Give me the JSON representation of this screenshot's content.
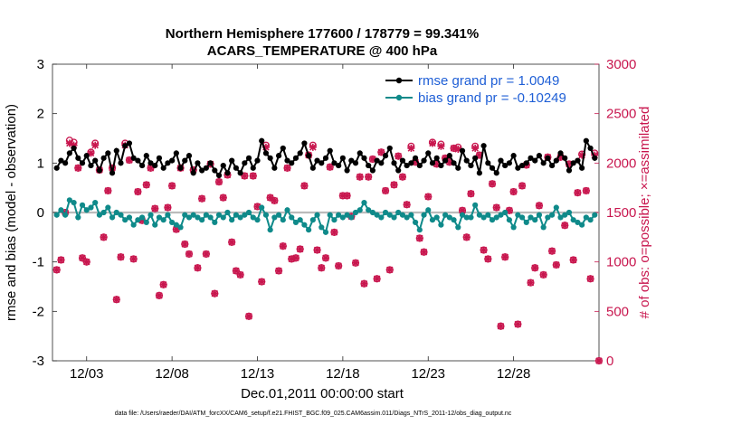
{
  "chart_data": {
    "type": "line",
    "title": "Northern Hemisphere 177600 / 178779 = 99.341%",
    "subtitle": "ACARS_TEMPERATURE @ 400 hPa",
    "xlabel": "Dec.01,2011 00:00:00 start",
    "ylabel_left": "rmse and bias (model - observation)",
    "ylabel_right": "# of obs: o=possible; ×=assimilated",
    "xlim": [
      0.0,
      32.0
    ],
    "ylim_left": [
      -3,
      3
    ],
    "ylim_right": [
      0,
      3000
    ],
    "x_ticks": [
      2,
      7,
      12,
      17,
      22,
      27
    ],
    "x_tick_labels": [
      "12/03",
      "12/08",
      "12/13",
      "12/18",
      "12/23",
      "12/28"
    ],
    "y_ticks_left": [
      -3,
      -2,
      -1,
      0,
      1,
      2,
      3
    ],
    "y_ticks_right": [
      0,
      500,
      1000,
      1500,
      2000,
      2500,
      3000
    ],
    "grid": false,
    "legend_position": "top-right",
    "colors": {
      "rmse": "#000000",
      "bias": "#0f8a8a",
      "obs": "#c8164e",
      "legend_text": "#1f5fd6",
      "zero_line": "#bbbbbb"
    },
    "series": [
      {
        "name": "rmse grand pr = 1.0049",
        "axis": "left",
        "x": [
          0.25,
          0.5,
          0.75,
          1.0,
          1.25,
          1.5,
          1.75,
          2.0,
          2.25,
          2.5,
          2.75,
          3.0,
          3.25,
          3.5,
          3.75,
          4.0,
          4.25,
          4.5,
          4.75,
          5.0,
          5.25,
          5.5,
          5.75,
          6.0,
          6.25,
          6.5,
          6.75,
          7.0,
          7.25,
          7.5,
          7.75,
          8.0,
          8.25,
          8.5,
          8.75,
          9.0,
          9.25,
          9.5,
          9.75,
          10.0,
          10.25,
          10.5,
          10.75,
          11.0,
          11.25,
          11.5,
          11.75,
          12.0,
          12.25,
          12.5,
          12.75,
          13.0,
          13.25,
          13.5,
          13.75,
          14.0,
          14.25,
          14.5,
          14.75,
          15.0,
          15.25,
          15.5,
          15.75,
          16.0,
          16.25,
          16.5,
          16.75,
          17.0,
          17.25,
          17.5,
          17.75,
          18.0,
          18.25,
          18.5,
          18.75,
          19.0,
          19.25,
          19.5,
          19.75,
          20.0,
          20.25,
          20.5,
          20.75,
          21.0,
          21.25,
          21.5,
          21.75,
          22.0,
          22.25,
          22.5,
          22.75,
          23.0,
          23.25,
          23.5,
          23.75,
          24.0,
          24.25,
          24.5,
          24.75,
          25.0,
          25.25,
          25.5,
          25.75,
          26.0,
          26.25,
          26.5,
          26.75,
          27.0,
          27.25,
          27.5,
          27.75,
          28.0,
          28.25,
          28.5,
          28.75,
          29.0,
          29.25,
          29.5,
          29.75,
          30.0,
          30.25,
          30.5,
          30.75,
          31.0,
          31.25,
          31.5,
          31.75
        ],
        "values": [
          0.9,
          1.05,
          1.0,
          1.2,
          1.3,
          1.1,
          1.0,
          1.15,
          0.95,
          1.05,
          0.85,
          1.1,
          1.2,
          0.8,
          1.25,
          1.0,
          1.35,
          1.4,
          1.1,
          1.05,
          0.95,
          1.15,
          1.0,
          0.95,
          1.1,
          0.9,
          1.0,
          1.05,
          1.2,
          0.9,
          1.05,
          1.15,
          0.8,
          1.0,
          0.85,
          0.9,
          1.0,
          0.85,
          0.75,
          0.95,
          0.8,
          1.05,
          0.9,
          0.8,
          1.0,
          1.1,
          0.9,
          1.05,
          1.45,
          1.2,
          1.1,
          0.9,
          1.15,
          1.3,
          1.05,
          1.0,
          1.1,
          1.2,
          1.4,
          1.15,
          0.9,
          1.05,
          1.0,
          1.1,
          1.25,
          1.0,
          0.95,
          1.1,
          0.85,
          1.05,
          1.0,
          1.2,
          1.1,
          0.95,
          0.85,
          1.05,
          1.0,
          1.15,
          1.3,
          1.0,
          0.85,
          1.05,
          0.95,
          1.0,
          1.1,
          0.95,
          1.05,
          1.2,
          1.0,
          1.1,
          0.95,
          1.05,
          1.15,
          1.0,
          0.9,
          1.25,
          1.05,
          0.95,
          1.1,
          0.8,
          1.35,
          1.0,
          0.9,
          0.8,
          1.05,
          0.95,
          1.0,
          1.15,
          0.9,
          0.95,
          1.0,
          1.1,
          1.05,
          1.15,
          1.0,
          1.1,
          0.95,
          1.05,
          1.2,
          1.1,
          0.85,
          1.0,
          1.05,
          0.9,
          1.45,
          1.3,
          1.1
        ],
        "marker": "circle"
      },
      {
        "name": "bias grand pr = -0.10249",
        "axis": "left",
        "x": [
          0.25,
          0.5,
          0.75,
          1.0,
          1.25,
          1.5,
          1.75,
          2.0,
          2.25,
          2.5,
          2.75,
          3.0,
          3.25,
          3.5,
          3.75,
          4.0,
          4.25,
          4.5,
          4.75,
          5.0,
          5.25,
          5.5,
          5.75,
          6.0,
          6.25,
          6.5,
          6.75,
          7.0,
          7.25,
          7.5,
          7.75,
          8.0,
          8.25,
          8.5,
          8.75,
          9.0,
          9.25,
          9.5,
          9.75,
          10.0,
          10.25,
          10.5,
          10.75,
          11.0,
          11.25,
          11.5,
          11.75,
          12.0,
          12.25,
          12.5,
          12.75,
          13.0,
          13.25,
          13.5,
          13.75,
          14.0,
          14.25,
          14.5,
          14.75,
          15.0,
          15.25,
          15.5,
          15.75,
          16.0,
          16.25,
          16.5,
          16.75,
          17.0,
          17.25,
          17.5,
          17.75,
          18.0,
          18.25,
          18.5,
          18.75,
          19.0,
          19.25,
          19.5,
          19.75,
          20.0,
          20.25,
          20.5,
          20.75,
          21.0,
          21.25,
          21.5,
          21.75,
          22.0,
          22.25,
          22.5,
          22.75,
          23.0,
          23.25,
          23.5,
          23.75,
          24.0,
          24.25,
          24.5,
          24.75,
          25.0,
          25.25,
          25.5,
          25.75,
          26.0,
          26.25,
          26.5,
          26.75,
          27.0,
          27.25,
          27.5,
          27.75,
          28.0,
          28.25,
          28.5,
          28.75,
          29.0,
          29.25,
          29.5,
          29.75,
          30.0,
          30.25,
          30.5,
          30.75,
          31.0,
          31.25,
          31.5,
          31.75
        ],
        "values": [
          -0.05,
          0.05,
          -0.05,
          0.25,
          0.2,
          -0.1,
          0.15,
          0.05,
          0.1,
          0.2,
          -0.05,
          0.0,
          0.1,
          -0.1,
          0.0,
          -0.05,
          -0.15,
          -0.1,
          -0.25,
          -0.15,
          -0.1,
          -0.2,
          -0.05,
          -0.25,
          -0.1,
          -0.15,
          -0.05,
          -0.2,
          -0.25,
          -0.3,
          -0.05,
          -0.1,
          -0.05,
          -0.1,
          -0.15,
          -0.05,
          -0.1,
          -0.2,
          -0.05,
          -0.1,
          0.0,
          -0.15,
          -0.05,
          -0.1,
          -0.05,
          0.0,
          -0.1,
          -0.15,
          0.1,
          -0.05,
          -0.35,
          -0.1,
          -0.05,
          -0.15,
          0.05,
          -0.1,
          -0.2,
          -0.15,
          -0.25,
          -0.35,
          -0.15,
          -0.05,
          -0.3,
          -0.4,
          -0.05,
          -0.15,
          -0.05,
          -0.1,
          -0.05,
          -0.1,
          0.0,
          0.05,
          0.2,
          0.05,
          0.0,
          -0.05,
          -0.1,
          0.0,
          -0.05,
          -0.1,
          0.0,
          -0.05,
          -0.1,
          -0.05,
          -0.2,
          -0.35,
          -0.05,
          0.05,
          -0.15,
          -0.1,
          -0.25,
          -0.05,
          -0.1,
          -0.15,
          -0.3,
          -0.05,
          -0.1,
          -0.1,
          0.15,
          -0.05,
          -0.1,
          -0.05,
          -0.15,
          -0.1,
          -0.05,
          0.0,
          -0.15,
          -0.3,
          -0.05,
          -0.1,
          -0.2,
          -0.1,
          -0.15,
          -0.05,
          -0.3,
          -0.1,
          -0.05,
          0.1,
          -0.1,
          -0.05,
          0.0,
          -0.15,
          -0.2,
          -0.25,
          -0.1,
          -0.15,
          -0.05
        ],
        "marker": "circle"
      },
      {
        "name": "possible",
        "axis": "right",
        "marker": "o",
        "x": [
          0.25,
          0.5,
          0.75,
          1.0,
          1.25,
          1.5,
          1.75,
          2.0,
          2.25,
          2.5,
          2.75,
          3.0,
          3.25,
          3.5,
          3.75,
          4.0,
          4.25,
          4.5,
          4.75,
          5.0,
          5.25,
          5.5,
          5.75,
          6.0,
          6.25,
          6.5,
          6.75,
          7.0,
          7.25,
          7.5,
          7.75,
          8.0,
          8.25,
          8.5,
          8.75,
          9.0,
          9.25,
          9.5,
          9.75,
          10.0,
          10.25,
          10.5,
          10.75,
          11.0,
          11.25,
          11.5,
          11.75,
          12.0,
          12.25,
          12.5,
          12.75,
          13.0,
          13.25,
          13.5,
          13.75,
          14.0,
          14.25,
          14.5,
          14.75,
          15.0,
          15.25,
          15.5,
          15.75,
          16.0,
          16.25,
          16.5,
          16.75,
          17.0,
          17.25,
          17.5,
          17.75,
          18.0,
          18.25,
          18.5,
          18.75,
          19.0,
          19.25,
          19.5,
          19.75,
          20.0,
          20.25,
          20.5,
          20.75,
          21.0,
          21.25,
          21.5,
          21.75,
          22.0,
          22.25,
          22.5,
          22.75,
          23.0,
          23.25,
          23.5,
          23.75,
          24.0,
          24.25,
          24.5,
          24.75,
          25.0,
          25.25,
          25.5,
          25.75,
          26.0,
          26.25,
          26.5,
          26.75,
          27.0,
          27.25,
          27.5,
          27.75,
          28.0,
          28.25,
          28.5,
          28.75,
          29.0,
          29.25,
          29.5,
          29.75,
          30.0,
          30.25,
          30.5,
          30.75,
          31.0,
          31.25,
          31.5,
          31.75
        ],
        "values": [
          920,
          1020,
          1500,
          2230,
          2210,
          1950,
          1040,
          1000,
          2110,
          2200,
          1930,
          1250,
          1720,
          1950,
          620,
          1050,
          2200,
          2030,
          1030,
          1710,
          1420,
          1780,
          1950,
          1540,
          660,
          770,
          1550,
          1770,
          1330,
          1950,
          1180,
          1080,
          1930,
          940,
          1640,
          1080,
          1990,
          680,
          1810,
          1650,
          1880,
          1200,
          910,
          870,
          1870,
          450,
          1870,
          1560,
          800,
          2180,
          1650,
          1620,
          910,
          1160,
          1950,
          1030,
          1040,
          1130,
          1770,
          2080,
          2180,
          1120,
          940,
          1040,
          1960,
          1300,
          960,
          1670,
          1670,
          1460,
          990,
          1860,
          780,
          1860,
          2040,
          830,
          2110,
          1720,
          920,
          1780,
          2070,
          1860,
          1580,
          2170,
          2010,
          1240,
          1100,
          1660,
          2210,
          1990,
          2190,
          2050,
          2010,
          2150,
          2160,
          1520,
          1250,
          1690,
          2170,
          2080,
          1120,
          1030,
          1790,
          1550,
          350,
          1050,
          1520,
          1710,
          370,
          1770,
          1980,
          790,
          940,
          1570,
          870,
          2060,
          1110,
          970,
          2060,
          1370,
          1990,
          1020,
          1700,
          2090,
          1720,
          830,
          2100
        ],
        "color": "#c8164e"
      },
      {
        "name": "assimilated",
        "axis": "right",
        "marker": "x",
        "x": [
          0.25,
          0.5,
          0.75,
          1.0,
          1.25,
          1.5,
          1.75,
          2.0,
          2.25,
          2.5,
          2.75,
          3.0,
          3.25,
          3.5,
          3.75,
          4.0,
          4.25,
          4.5,
          4.75,
          5.0,
          5.25,
          5.5,
          5.75,
          6.0,
          6.25,
          6.5,
          6.75,
          7.0,
          7.25,
          7.5,
          7.75,
          8.0,
          8.25,
          8.5,
          8.75,
          9.0,
          9.25,
          9.5,
          9.75,
          10.0,
          10.25,
          10.5,
          10.75,
          11.0,
          11.25,
          11.5,
          11.75,
          12.0,
          12.25,
          12.5,
          12.75,
          13.0,
          13.25,
          13.5,
          13.75,
          14.0,
          14.25,
          14.5,
          14.75,
          15.0,
          15.25,
          15.5,
          15.75,
          16.0,
          16.25,
          16.5,
          16.75,
          17.0,
          17.25,
          17.5,
          17.75,
          18.0,
          18.25,
          18.5,
          18.75,
          19.0,
          19.25,
          19.5,
          19.75,
          20.0,
          20.25,
          20.5,
          20.75,
          21.0,
          21.25,
          21.5,
          21.75,
          22.0,
          22.25,
          22.5,
          22.75,
          23.0,
          23.25,
          23.5,
          23.75,
          24.0,
          24.25,
          24.5,
          24.75,
          25.0,
          25.25,
          25.5,
          25.75,
          26.0,
          26.25,
          26.5,
          26.75,
          27.0,
          27.25,
          27.5,
          27.75,
          28.0,
          28.25,
          28.5,
          28.75,
          29.0,
          29.25,
          29.5,
          29.75,
          30.0,
          30.25,
          30.5,
          30.75,
          31.0,
          31.25,
          31.5,
          31.75
        ],
        "values": [
          920,
          1020,
          1500,
          2200,
          2180,
          1950,
          1040,
          1000,
          2100,
          2180,
          1930,
          1250,
          1720,
          1950,
          620,
          1050,
          2180,
          2030,
          1030,
          1710,
          1420,
          1780,
          1950,
          1540,
          660,
          770,
          1550,
          1770,
          1330,
          1950,
          1180,
          1080,
          1930,
          940,
          1640,
          1080,
          1990,
          680,
          1810,
          1650,
          1880,
          1200,
          910,
          870,
          1870,
          450,
          1870,
          1560,
          800,
          2160,
          1650,
          1620,
          910,
          1160,
          1950,
          1030,
          1040,
          1130,
          1770,
          2080,
          2160,
          1120,
          940,
          1040,
          1960,
          1300,
          960,
          1670,
          1670,
          1460,
          990,
          1860,
          780,
          1860,
          2040,
          830,
          2110,
          1720,
          920,
          1780,
          2070,
          1860,
          1580,
          2150,
          2010,
          1240,
          1100,
          1660,
          2200,
          1990,
          2170,
          2050,
          2010,
          2150,
          2140,
          1520,
          1250,
          1690,
          2150,
          2080,
          1120,
          1030,
          1790,
          1550,
          350,
          1050,
          1520,
          1710,
          370,
          1770,
          1980,
          790,
          940,
          1570,
          870,
          2060,
          1110,
          970,
          2060,
          1370,
          1990,
          1020,
          1700,
          2080,
          1720,
          830,
          2080
        ],
        "color": "#c8164e"
      }
    ],
    "extra_points": [
      {
        "x": 32.0,
        "y": 0,
        "axis": "right",
        "marker": "o"
      },
      {
        "x": 32.0,
        "y": 0,
        "axis": "right",
        "marker": "x"
      }
    ],
    "footer": "data file: /Users/raeder/DAI/ATM_forcXX/CAM6_setup/f.e21.FHIST_BGC.f09_025.CAM6assim.011/Diags_NTrS_2011-12/obs_diag_output.nc"
  }
}
